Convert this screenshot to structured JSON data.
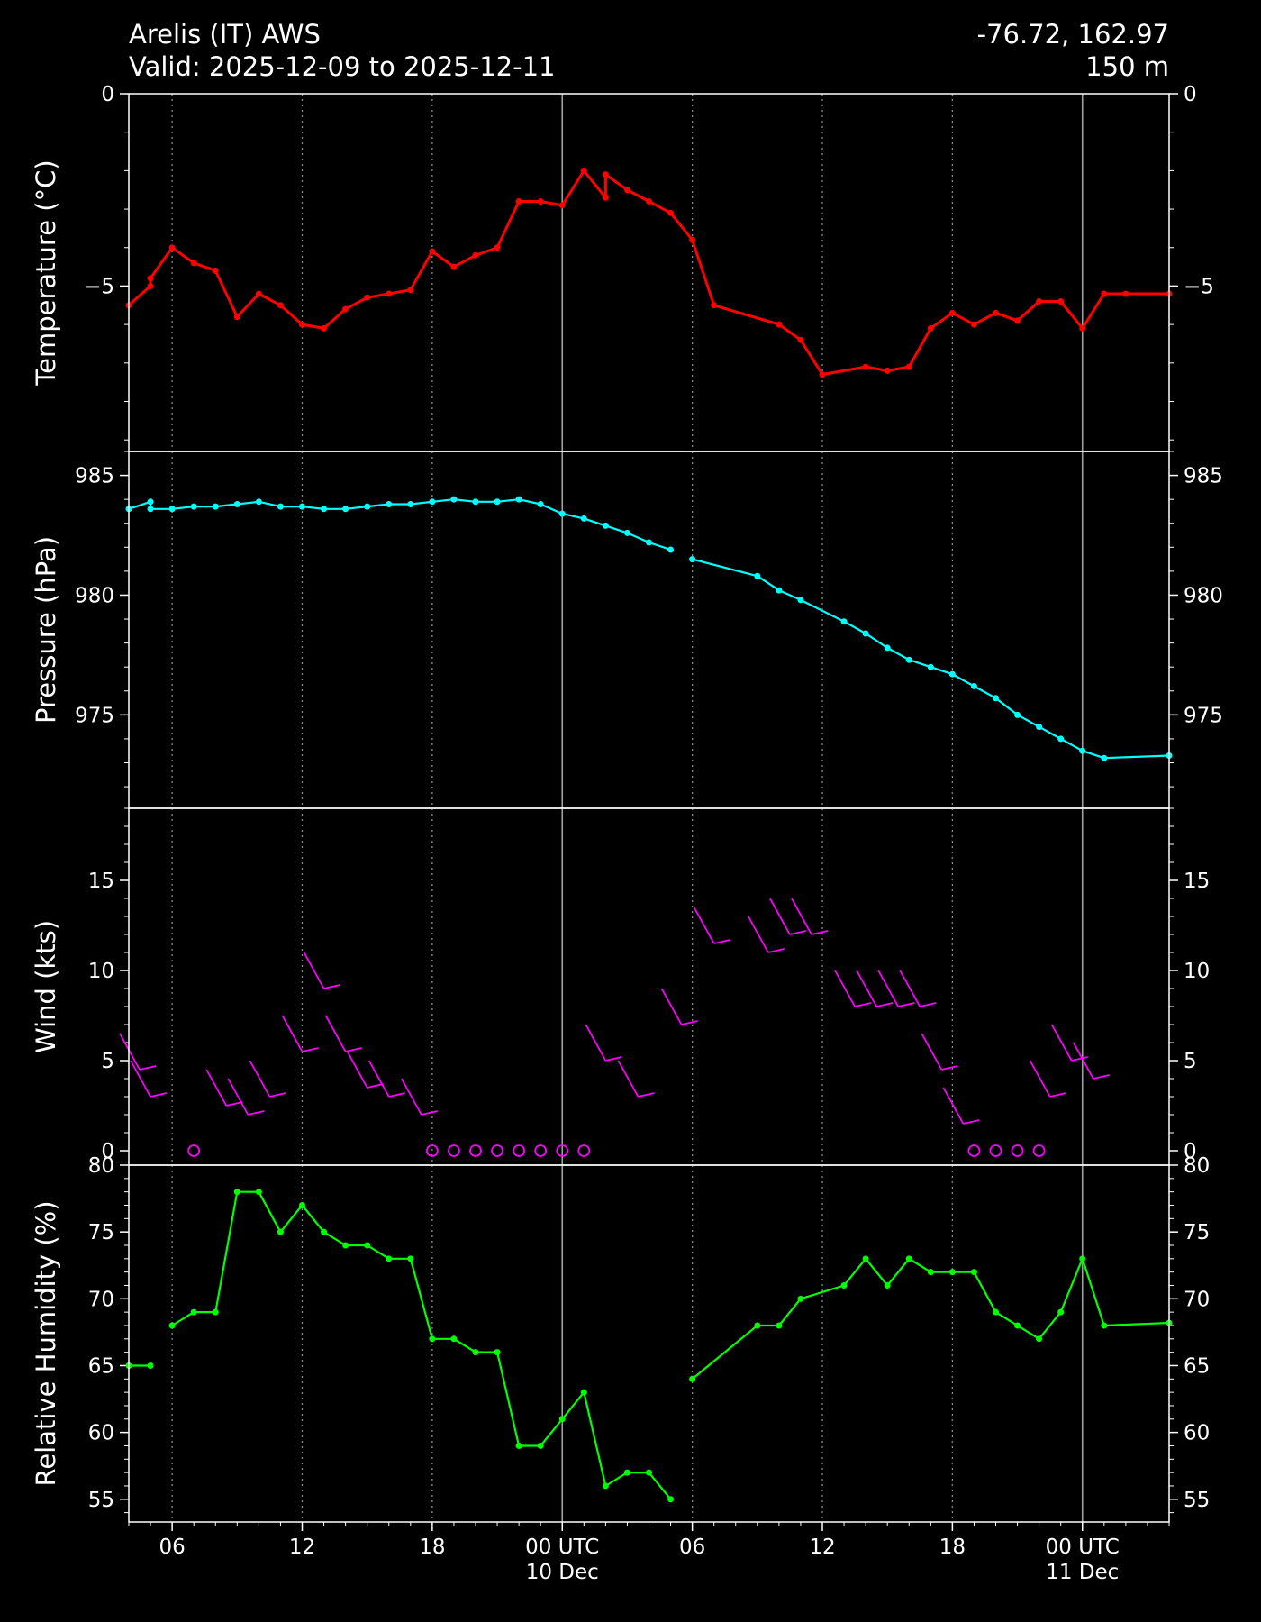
{
  "header": {
    "station": "Arelis (IT) AWS",
    "valid": "Valid: 2025-12-09 to 2025-12-11",
    "coords": "-76.72, 162.97",
    "elevation": "150 m"
  },
  "chart_data": [
    {
      "type": "line",
      "ylabel": "Temperature ($^\\circ$C)",
      "ylim": [
        -9.3,
        0
      ],
      "yticks": [
        0,
        -5
      ],
      "color": "#ff0000",
      "x": [
        3,
        4,
        4,
        5,
        6,
        7,
        8,
        9,
        10,
        11,
        12,
        13,
        14,
        15,
        16,
        17,
        18,
        19,
        20,
        21,
        22,
        23,
        24,
        25,
        25,
        26,
        27,
        28,
        29,
        30,
        33,
        34,
        35,
        37,
        38,
        39,
        40,
        41,
        42,
        43,
        44,
        45,
        46,
        47,
        48,
        49,
        51
      ],
      "y": [
        -5.5,
        -5.0,
        -4.8,
        -4.0,
        -4.4,
        -4.6,
        -5.8,
        -5.2,
        -5.5,
        -6.0,
        -6.1,
        -5.6,
        -5.3,
        -5.2,
        -5.1,
        -4.1,
        -4.5,
        -4.2,
        -4.0,
        -2.8,
        -2.8,
        -2.9,
        -2.0,
        -2.7,
        -2.1,
        -2.5,
        -2.8,
        -3.1,
        -3.8,
        -5.5,
        -6.0,
        -6.4,
        -7.3,
        -7.1,
        -7.2,
        -7.1,
        -6.1,
        -5.7,
        -6.0,
        -5.7,
        -5.9,
        -5.4,
        -5.4,
        -6.1,
        -5.2,
        -5.2,
        -5.2
      ]
    },
    {
      "type": "line",
      "ylabel": "Pressure (hPa)",
      "ylim": [
        971.1,
        986.0
      ],
      "yticks": [
        985,
        980,
        975
      ],
      "color": "#00ffff",
      "segments": [
        {
          "x": [
            3,
            4,
            4,
            5,
            6,
            7,
            8,
            9,
            10,
            11,
            12,
            13,
            14,
            15,
            16,
            17,
            18,
            19,
            20,
            21,
            22,
            23,
            24,
            25,
            26,
            27,
            28
          ],
          "y": [
            983.6,
            983.9,
            983.6,
            983.6,
            983.7,
            983.7,
            983.8,
            983.9,
            983.7,
            983.7,
            983.6,
            983.6,
            983.7,
            983.8,
            983.8,
            983.9,
            984.0,
            983.9,
            983.9,
            984.0,
            983.8,
            983.4,
            983.2,
            982.9,
            982.6,
            982.2,
            981.9
          ]
        },
        {
          "x": [
            29,
            32,
            33,
            34,
            36,
            37,
            38,
            39,
            40,
            41,
            42,
            43,
            44,
            45,
            46,
            47,
            48,
            51
          ],
          "y": [
            981.5,
            980.8,
            980.2,
            979.8,
            978.9,
            978.4,
            977.8,
            977.3,
            977.0,
            976.7,
            976.2,
            975.7,
            975.0,
            974.5,
            974.0,
            973.5,
            973.2,
            973.3
          ]
        }
      ]
    },
    {
      "type": "scatter",
      "ylabel": "Wind (kts)",
      "ylim": [
        -0.8,
        19.0
      ],
      "yticks": [
        0,
        5,
        10,
        15
      ],
      "color": "#ff00ff",
      "calm_x": [
        6,
        17,
        18,
        19,
        20,
        21,
        22,
        23,
        24,
        42,
        43,
        44,
        45
      ],
      "barbs": [
        {
          "x": 3.5,
          "y": 4.5
        },
        {
          "x": 4.0,
          "y": 3.0
        },
        {
          "x": 7.5,
          "y": 2.5
        },
        {
          "x": 8.5,
          "y": 2.0
        },
        {
          "x": 9.5,
          "y": 3.0
        },
        {
          "x": 11.0,
          "y": 5.5
        },
        {
          "x": 12.0,
          "y": 9.0
        },
        {
          "x": 13.0,
          "y": 5.5
        },
        {
          "x": 14.0,
          "y": 3.5
        },
        {
          "x": 15.0,
          "y": 3.0
        },
        {
          "x": 16.5,
          "y": 2.0
        },
        {
          "x": 25.0,
          "y": 5.0
        },
        {
          "x": 26.5,
          "y": 3.0
        },
        {
          "x": 28.5,
          "y": 7.0
        },
        {
          "x": 30.0,
          "y": 11.5
        },
        {
          "x": 32.5,
          "y": 11.0
        },
        {
          "x": 33.5,
          "y": 12.0
        },
        {
          "x": 34.5,
          "y": 12.0
        },
        {
          "x": 36.5,
          "y": 8.0
        },
        {
          "x": 37.5,
          "y": 8.0
        },
        {
          "x": 38.5,
          "y": 8.0
        },
        {
          "x": 39.5,
          "y": 8.0
        },
        {
          "x": 40.5,
          "y": 4.5
        },
        {
          "x": 41.5,
          "y": 1.5
        },
        {
          "x": 45.5,
          "y": 3.0
        },
        {
          "x": 46.5,
          "y": 5.0
        },
        {
          "x": 47.5,
          "y": 4.0
        }
      ]
    },
    {
      "type": "line",
      "ylabel": "Relative Humidity (%)",
      "ylim": [
        53.3,
        80
      ],
      "yticks": [
        80,
        75,
        70,
        65,
        60,
        55
      ],
      "color": "#00ff00",
      "segments": [
        {
          "x": [
            3,
            4
          ],
          "y": [
            65,
            65
          ]
        },
        {
          "x": [
            5,
            6,
            7,
            8,
            9,
            10,
            11,
            12,
            13,
            14,
            15,
            16,
            17,
            18,
            19,
            20,
            21,
            22,
            23,
            24,
            25,
            26,
            27,
            28
          ],
          "y": [
            68,
            69,
            69,
            78,
            78,
            75,
            77,
            75,
            74,
            74,
            73,
            73,
            67,
            67,
            66,
            66,
            59,
            59,
            61,
            63,
            56,
            57,
            57,
            55
          ]
        },
        {
          "x": [
            29,
            32,
            33,
            34,
            36,
            37,
            38,
            39,
            40,
            41,
            42,
            43,
            44,
            45,
            46,
            47,
            48,
            51
          ],
          "y": [
            64,
            68,
            68,
            70,
            71,
            73,
            71,
            73,
            72,
            72,
            72,
            69,
            68,
            67,
            69,
            73,
            68,
            68.2
          ]
        }
      ]
    }
  ],
  "x_axis": {
    "range": [
      3,
      51
    ],
    "ticks": [
      {
        "x": 5,
        "line1": "06",
        "line2": ""
      },
      {
        "x": 11,
        "line1": "12",
        "line2": ""
      },
      {
        "x": 17,
        "line1": "18",
        "line2": ""
      },
      {
        "x": 23,
        "line1": "00 UTC",
        "line2": "10 Dec"
      },
      {
        "x": 29,
        "line1": "06",
        "line2": ""
      },
      {
        "x": 35,
        "line1": "12",
        "line2": ""
      },
      {
        "x": 41,
        "line1": "18",
        "line2": ""
      },
      {
        "x": 47,
        "line1": "00 UTC",
        "line2": "11 Dec"
      }
    ],
    "day_lines": [
      23,
      47
    ]
  }
}
